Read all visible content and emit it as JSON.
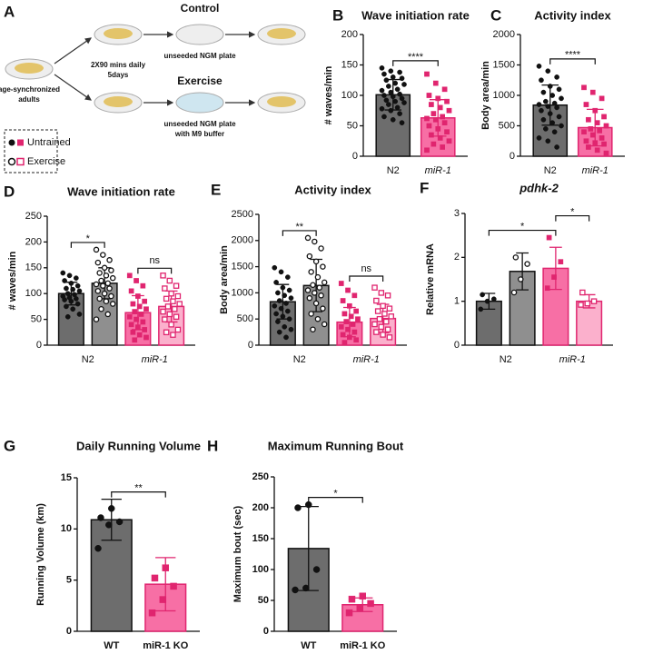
{
  "panel_a": {
    "letter": "A",
    "control": "Control",
    "exercise": "Exercise",
    "schedule": [
      "2X90 mins daily",
      "5days"
    ],
    "control_plate": "unseeded NGM plate",
    "exercise_plate": [
      "unseeded NGM plate",
      "with M9 buffer"
    ],
    "start": [
      "age-synchronized",
      "adults"
    ]
  },
  "legend": {
    "entries": [
      "Untrained",
      "Exercise"
    ]
  },
  "chart_data": [
    {
      "type": "bar",
      "panel": "B",
      "title": "Wave initiation rate",
      "ylabel": "# waves/min",
      "categories": [
        "N2",
        "miR-1"
      ],
      "category_style": [
        "normal",
        "italic"
      ],
      "ylim": [
        0,
        200
      ],
      "yticks": [
        0,
        50,
        100,
        150,
        200
      ],
      "series": [
        {
          "colors": [
            "#6d6d6d",
            "#f76fa5"
          ],
          "edges": [
            "#111111",
            "#e0256f"
          ],
          "markers": [
            "circle",
            "square"
          ],
          "hollow": false,
          "values": [
            101,
            63
          ],
          "errors": [
            25,
            30
          ],
          "points": [
            [
              145,
              140,
              138,
              135,
              130,
              128,
              125,
              120,
              118,
              115,
              110,
              108,
              105,
              102,
              100,
              98,
              95,
              92,
              90,
              88,
              85,
              80,
              78,
              75,
              70,
              65,
              60,
              55
            ],
            [
              135,
              120,
              110,
              100,
              95,
              90,
              85,
              80,
              75,
              70,
              65,
              62,
              60,
              55,
              50,
              45,
              40,
              35,
              30,
              25,
              20,
              15,
              10
            ]
          ]
        }
      ],
      "annotations": [
        {
          "label": "****",
          "from": 0,
          "to": 1
        }
      ]
    },
    {
      "type": "bar",
      "panel": "C",
      "title": "Activity index",
      "ylabel": "Body area/min",
      "categories": [
        "N2",
        "miR-1"
      ],
      "category_style": [
        "normal",
        "italic"
      ],
      "ylim": [
        0,
        2000
      ],
      "yticks": [
        0,
        500,
        1000,
        1500,
        2000
      ],
      "series": [
        {
          "colors": [
            "#6d6d6d",
            "#f76fa5"
          ],
          "edges": [
            "#111111",
            "#e0256f"
          ],
          "markers": [
            "circle",
            "square"
          ],
          "hollow": false,
          "values": [
            840,
            470
          ],
          "errors": [
            330,
            300
          ],
          "points": [
            [
              1480,
              1400,
              1300,
              1250,
              1150,
              1100,
              1050,
              1000,
              950,
              900,
              870,
              850,
              820,
              800,
              750,
              700,
              650,
              600,
              550,
              500,
              450,
              400,
              300,
              250,
              150
            ],
            [
              1130,
              1050,
              950,
              850,
              750,
              650,
              600,
              550,
              500,
              450,
              420,
              400,
              350,
              300,
              250,
              220,
              200,
              150,
              100,
              50
            ]
          ]
        }
      ],
      "annotations": [
        {
          "label": "****",
          "from": 0,
          "to": 1
        }
      ]
    },
    {
      "type": "bar",
      "panel": "D",
      "title": "Wave initiation rate",
      "ylabel": "# waves/min",
      "categories": [
        "N2",
        "miR-1"
      ],
      "category_style": [
        "normal",
        "italic"
      ],
      "ylim": [
        0,
        250
      ],
      "yticks": [
        0,
        50,
        100,
        150,
        200,
        250
      ],
      "series": [
        {
          "colors": [
            "#6d6d6d",
            "#f76fa5"
          ],
          "edges": [
            "#111111",
            "#e0256f"
          ],
          "markers": [
            "circle",
            "square"
          ],
          "hollow": false,
          "values": [
            100,
            63
          ],
          "errors": [
            22,
            33
          ],
          "points": [
            [
              140,
              135,
              130,
              125,
              120,
              115,
              110,
              108,
              105,
              100,
              98,
              95,
              92,
              90,
              88,
              85,
              80,
              75,
              70,
              60,
              55
            ],
            [
              135,
              125,
              115,
              105,
              95,
              85,
              80,
              75,
              70,
              65,
              60,
              55,
              50,
              45,
              40,
              35,
              30,
              25,
              20,
              15,
              10
            ]
          ]
        },
        {
          "colors": [
            "#8f8f8f",
            "#fbb0cc"
          ],
          "edges": [
            "#111111",
            "#e0256f"
          ],
          "markers": [
            "circle",
            "square"
          ],
          "hollow": true,
          "values": [
            120,
            75
          ],
          "errors": [
            30,
            30
          ],
          "points": [
            [
              185,
              175,
              165,
              160,
              150,
              145,
              140,
              135,
              130,
              125,
              120,
              118,
              115,
              110,
              105,
              100,
              95,
              90,
              85,
              80,
              70,
              60,
              50
            ],
            [
              135,
              125,
              115,
              110,
              100,
              95,
              90,
              85,
              80,
              75,
              70,
              65,
              60,
              55,
              50,
              40,
              30,
              25,
              20
            ]
          ]
        }
      ],
      "annotations": [
        {
          "label": "*",
          "from": 0,
          "to": 1
        },
        {
          "label": "ns",
          "from": 2,
          "to": 3
        }
      ]
    },
    {
      "type": "bar",
      "panel": "E",
      "title": "Activity index",
      "ylabel": "Body area/min",
      "categories": [
        "N2",
        "miR-1"
      ],
      "category_style": [
        "normal",
        "italic"
      ],
      "ylim": [
        0,
        2500
      ],
      "yticks": [
        0,
        500,
        1000,
        1500,
        2000,
        2500
      ],
      "series": [
        {
          "colors": [
            "#6d6d6d",
            "#f76fa5"
          ],
          "edges": [
            "#111111",
            "#e0256f"
          ],
          "markers": [
            "circle",
            "square"
          ],
          "hollow": false,
          "values": [
            830,
            440
          ],
          "errors": [
            330,
            280
          ],
          "points": [
            [
              1480,
              1400,
              1300,
              1200,
              1100,
              1050,
              1000,
              950,
              900,
              850,
              800,
              750,
              700,
              650,
              600,
              550,
              500,
              450,
              350,
              300,
              250,
              150
            ],
            [
              1180,
              1050,
              950,
              850,
              750,
              650,
              600,
              550,
              500,
              450,
              400,
              350,
              300,
              250,
              200,
              150,
              100,
              50
            ]
          ]
        },
        {
          "colors": [
            "#8f8f8f",
            "#fbb0cc"
          ],
          "edges": [
            "#111111",
            "#e0256f"
          ],
          "markers": [
            "circle",
            "square"
          ],
          "hollow": true,
          "values": [
            1140,
            510
          ],
          "errors": [
            500,
            270
          ],
          "points": [
            [
              2050,
              1980,
              1850,
              1700,
              1600,
              1500,
              1400,
              1300,
              1200,
              1150,
              1100,
              1050,
              1000,
              950,
              900,
              800,
              700,
              600,
              500,
              400,
              300
            ],
            [
              1100,
              1000,
              950,
              850,
              750,
              700,
              650,
              600,
              550,
              500,
              450,
              400,
              350,
              300,
              250,
              200,
              150
            ]
          ]
        }
      ],
      "annotations": [
        {
          "label": "**",
          "from": 0,
          "to": 1
        },
        {
          "label": "ns",
          "from": 2,
          "to": 3
        }
      ]
    },
    {
      "type": "bar",
      "panel": "F",
      "title": "pdhk-2",
      "title_style": "italic",
      "ylabel": "Relative mRNA",
      "categories": [
        "N2",
        "miR-1"
      ],
      "category_style": [
        "normal",
        "italic"
      ],
      "ylim": [
        0,
        3
      ],
      "yticks": [
        0,
        1,
        2,
        3
      ],
      "series": [
        {
          "colors": [
            "#6d6d6d",
            "#f76fa5"
          ],
          "edges": [
            "#111111",
            "#e0256f"
          ],
          "markers": [
            "circle",
            "square"
          ],
          "hollow": false,
          "values": [
            1.0,
            1.75
          ],
          "errors": [
            0.18,
            0.48
          ],
          "points": [
            [
              0.82,
              1.0,
              1.05,
              1.15
            ],
            [
              1.3,
              1.55,
              1.9,
              2.45
            ]
          ]
        },
        {
          "colors": [
            "#8f8f8f",
            "#fbb0cc"
          ],
          "edges": [
            "#111111",
            "#e0256f"
          ],
          "markers": [
            "circle",
            "square"
          ],
          "hollow": true,
          "values": [
            1.68,
            1.0
          ],
          "errors": [
            0.42,
            0.15
          ],
          "points": [
            [
              1.2,
              1.5,
              1.85,
              2.0
            ],
            [
              0.92,
              0.95,
              1.0,
              1.2
            ]
          ]
        }
      ],
      "annotations": [
        {
          "label": "*",
          "from": 0,
          "to": 2
        },
        {
          "label": "*",
          "from": 2,
          "to": 3
        }
      ]
    },
    {
      "type": "bar",
      "panel": "G",
      "title": "Daily Running Volume",
      "ylabel": "Running Volume (km)",
      "categories": [
        "WT",
        "miR-1 KO"
      ],
      "category_style": [
        "normal",
        "normal"
      ],
      "ylim": [
        0,
        15
      ],
      "yticks": [
        0,
        5,
        10,
        15
      ],
      "series": [
        {
          "colors": [
            "#6d6d6d",
            "#f76fa5"
          ],
          "edges": [
            "#111111",
            "#e0256f"
          ],
          "markers": [
            "circle",
            "square"
          ],
          "hollow": false,
          "values": [
            10.9,
            4.6
          ],
          "errors": [
            2.0,
            2.6
          ],
          "points": [
            [
              8.1,
              10.4,
              10.7,
              11.1,
              12.0
            ],
            [
              1.8,
              3.1,
              4.4,
              5.2,
              6.2
            ]
          ]
        }
      ],
      "annotations": [
        {
          "label": "**",
          "from": 0,
          "to": 1
        }
      ]
    },
    {
      "type": "bar",
      "panel": "H",
      "title": "Maximum Running Bout",
      "ylabel": "Maximum bout (sec)",
      "categories": [
        "WT",
        "miR-1 KO"
      ],
      "category_style": [
        "normal",
        "normal"
      ],
      "ylim": [
        0,
        250
      ],
      "yticks": [
        0,
        50,
        100,
        150,
        200,
        250
      ],
      "series": [
        {
          "colors": [
            "#6d6d6d",
            "#f76fa5"
          ],
          "edges": [
            "#111111",
            "#e0256f"
          ],
          "markers": [
            "circle",
            "square"
          ],
          "hollow": false,
          "values": [
            134,
            43
          ],
          "errors": [
            68,
            11
          ],
          "points": [
            [
              67,
              70,
              100,
              200,
              205
            ],
            [
              30,
              38,
              45,
              52,
              57
            ]
          ]
        }
      ],
      "annotations": [
        {
          "label": "*",
          "from": 0,
          "to": 1
        }
      ]
    }
  ]
}
